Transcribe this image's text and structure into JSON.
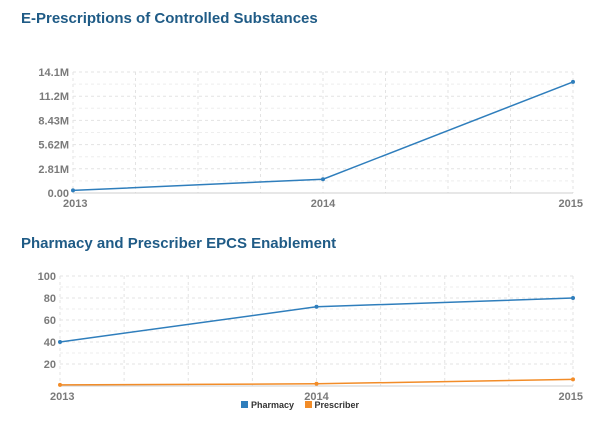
{
  "chart_data": [
    {
      "type": "line",
      "title": "E-Prescriptions of Controlled Substances",
      "categories": [
        "2013",
        "2014",
        "2015"
      ],
      "y_tick_labels": [
        "0.00",
        "2.81M",
        "5.62M",
        "8.43M",
        "11.2M",
        "14.1M"
      ],
      "y_ticks": [
        0,
        2.81,
        5.62,
        8.43,
        11.24,
        14.05
      ],
      "ylim": [
        0,
        14.05
      ],
      "y_unit": "M",
      "grid": true,
      "series": [
        {
          "values": [
            0.3,
            1.6,
            12.9
          ],
          "color": "#2f7ebc"
        }
      ]
    },
    {
      "type": "line",
      "title": "Pharmacy and Prescriber EPCS Enablement",
      "categories": [
        "2013",
        "2014",
        "2015"
      ],
      "y_tick_labels": [
        "20",
        "40",
        "60",
        "80",
        "100"
      ],
      "y_ticks": [
        20,
        40,
        60,
        80,
        100
      ],
      "ylim": [
        0,
        100
      ],
      "grid": true,
      "legend": "bottom-center",
      "series": [
        {
          "name": "Pharmacy",
          "values": [
            40,
            72,
            80
          ],
          "color": "#2f7ebc"
        },
        {
          "name": "Prescriber",
          "values": [
            1,
            2,
            6
          ],
          "color": "#f28c28"
        }
      ]
    }
  ]
}
